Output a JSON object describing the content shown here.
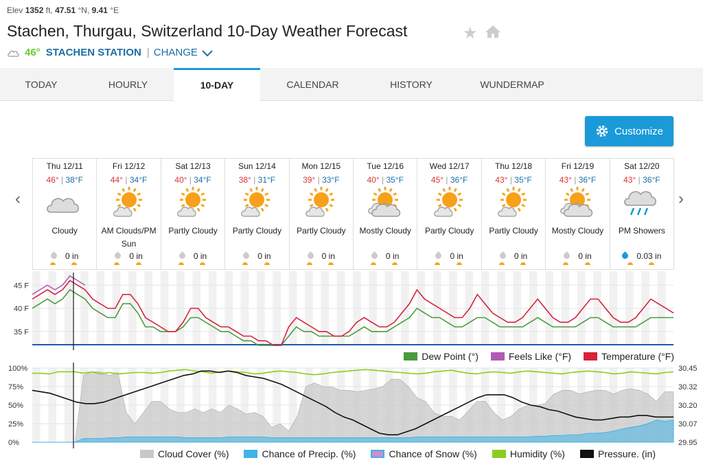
{
  "header": {
    "elev_prefix": "Elev",
    "elev_value": "1352",
    "elev_unit": "ft,",
    "lat": "47.51",
    "lat_unit": "°N,",
    "lon": "9.41",
    "lon_unit": "°E",
    "title": "Stachen, Thurgau, Switzerland 10-Day Weather Forecast",
    "station_temp": "46°",
    "station_name": "STACHEN STATION",
    "change_label": "CHANGE"
  },
  "tabs": [
    {
      "label": "TODAY"
    },
    {
      "label": "HOURLY"
    },
    {
      "label": "10-DAY"
    },
    {
      "label": "CALENDAR"
    },
    {
      "label": "HISTORY"
    },
    {
      "label": "WUNDERMAP"
    }
  ],
  "customize_label": "Customize",
  "days": [
    {
      "date": "Thu 12/11",
      "hi": "46°",
      "lo": "38°F",
      "cond": "Cloudy",
      "icon": "cloudy-icon",
      "precip": "0 in"
    },
    {
      "date": "Fri 12/12",
      "hi": "44°",
      "lo": "34°F",
      "cond": "AM Clouds/PM Sun",
      "icon": "partly-cloudy-icon",
      "precip": "0 in"
    },
    {
      "date": "Sat 12/13",
      "hi": "40°",
      "lo": "34°F",
      "cond": "Partly Cloudy",
      "icon": "partly-cloudy-icon",
      "precip": "0 in"
    },
    {
      "date": "Sun 12/14",
      "hi": "38°",
      "lo": "31°F",
      "cond": "Partly Cloudy",
      "icon": "partly-cloudy-icon",
      "precip": "0 in"
    },
    {
      "date": "Mon 12/15",
      "hi": "39°",
      "lo": "33°F",
      "cond": "Partly Cloudy",
      "icon": "partly-cloudy-icon",
      "precip": "0 in"
    },
    {
      "date": "Tue 12/16",
      "hi": "40°",
      "lo": "35°F",
      "cond": "Mostly Cloudy",
      "icon": "mostly-cloudy-icon",
      "precip": "0 in"
    },
    {
      "date": "Wed 12/17",
      "hi": "45°",
      "lo": "36°F",
      "cond": "Partly Cloudy",
      "icon": "partly-cloudy-icon",
      "precip": "0 in"
    },
    {
      "date": "Thu 12/18",
      "hi": "43°",
      "lo": "35°F",
      "cond": "Partly Cloudy",
      "icon": "partly-cloudy-icon",
      "precip": "0 in"
    },
    {
      "date": "Fri 12/19",
      "hi": "43°",
      "lo": "36°F",
      "cond": "Mostly Cloudy",
      "icon": "mostly-cloudy-icon",
      "precip": "0 in"
    },
    {
      "date": "Sat 12/20",
      "hi": "43°",
      "lo": "36°F",
      "cond": "PM Showers",
      "icon": "showers-icon",
      "precip": "0.03 in"
    }
  ],
  "chart_data": [
    {
      "type": "line",
      "yticks": [
        "45 F",
        "40 F",
        "35 F"
      ],
      "ylim": [
        32,
        48
      ],
      "legend": [
        "Dew Point (°)",
        "Feels Like (°F)",
        "Temperature (°F)"
      ],
      "colors": {
        "dew": "#4a9a3a",
        "feels": "#b05ab5",
        "temp": "#d6213a"
      },
      "series": [
        {
          "name": "Temperature (°F)",
          "values": [
            42,
            43,
            44,
            43,
            44,
            46,
            45,
            44,
            42,
            41,
            40,
            40,
            43,
            43,
            41,
            38,
            37,
            36,
            35,
            35,
            37,
            40,
            40,
            38,
            37,
            36,
            36,
            35,
            34,
            34,
            33,
            33,
            32,
            32,
            36,
            38,
            37,
            36,
            35,
            35,
            34,
            34,
            35,
            37,
            38,
            37,
            36,
            36,
            37,
            39,
            41,
            44,
            42,
            41,
            40,
            39,
            38,
            38,
            40,
            43,
            41,
            39,
            38,
            37,
            37,
            38,
            40,
            42,
            40,
            38,
            37,
            37,
            38,
            40,
            42,
            42,
            40,
            38,
            37,
            37,
            38,
            40,
            42,
            41,
            40,
            39
          ]
        },
        {
          "name": "Dew Point (°)",
          "values": [
            40,
            41,
            42,
            41,
            42,
            44,
            43,
            42,
            40,
            39,
            38,
            38,
            41,
            41,
            39,
            36,
            36,
            35,
            35,
            35,
            36,
            38,
            38,
            37,
            36,
            35,
            35,
            34,
            33,
            33,
            32,
            32,
            32,
            32,
            34,
            36,
            35,
            35,
            34,
            34,
            34,
            34,
            34,
            35,
            36,
            35,
            35,
            35,
            36,
            37,
            38,
            40,
            39,
            38,
            38,
            37,
            36,
            36,
            37,
            38,
            38,
            37,
            36,
            36,
            36,
            36,
            37,
            38,
            37,
            36,
            36,
            36,
            36,
            37,
            38,
            38,
            37,
            36,
            36,
            36,
            36,
            37,
            38,
            38,
            38,
            38
          ]
        }
      ]
    },
    {
      "type": "area",
      "yticks_left": [
        "100%",
        "75%",
        "50%",
        "25%",
        "0%"
      ],
      "yticks_right": [
        "30.45",
        "30.32",
        "30.20",
        "30.07",
        "29.95"
      ],
      "legend": [
        "Cloud Cover (%)",
        "Chance of Precip. (%)",
        "Chance of Snow (%)",
        "Humidity (%)",
        "Pressure. (in)"
      ],
      "colors": {
        "cloud": "#c8c8c8",
        "precip": "#42b3e5",
        "snow": "#c98ecf",
        "humidity": "#8ccc1e",
        "pressure": "#111111"
      },
      "series": [
        {
          "name": "Cloud Cover (%)",
          "values": [
            0,
            0,
            0,
            0,
            0,
            0,
            90,
            95,
            95,
            90,
            94,
            40,
            25,
            40,
            55,
            55,
            45,
            40,
            40,
            45,
            40,
            45,
            40,
            50,
            45,
            38,
            40,
            35,
            20,
            25,
            15,
            35,
            75,
            80,
            75,
            75,
            70,
            70,
            68,
            70,
            72,
            75,
            85,
            85,
            75,
            60,
            55,
            40,
            35,
            35,
            30,
            42,
            55,
            55,
            40,
            30,
            35,
            45,
            50,
            50,
            52,
            65,
            70,
            70,
            65,
            68,
            70,
            70,
            65,
            70,
            72,
            70,
            65,
            55,
            68,
            68
          ]
        },
        {
          "name": "Chance of Precip. (%)",
          "values": [
            0,
            0,
            0,
            0,
            0,
            0,
            5,
            5,
            5,
            6,
            6,
            7,
            7,
            7,
            7,
            7,
            7,
            7,
            6,
            6,
            6,
            6,
            6,
            7,
            7,
            7,
            7,
            7,
            6,
            6,
            6,
            6,
            6,
            6,
            6,
            6,
            6,
            6,
            6,
            6,
            6,
            6,
            6,
            6,
            6,
            7,
            7,
            7,
            7,
            7,
            7,
            7,
            7,
            7,
            7,
            7,
            7,
            7,
            7,
            8,
            8,
            9,
            9,
            10,
            10,
            12,
            12,
            13,
            15,
            18,
            20,
            22,
            25,
            30,
            28,
            30
          ]
        },
        {
          "name": "Humidity (%)",
          "values": [
            93,
            93,
            92,
            95,
            95,
            95,
            93,
            95,
            92,
            94,
            92,
            93,
            94,
            94,
            93,
            94,
            96,
            97,
            98,
            96,
            95,
            93,
            95,
            96,
            95,
            94,
            92,
            93,
            95,
            96,
            95,
            94,
            92,
            91,
            92,
            94,
            95,
            96,
            97,
            98,
            97,
            96,
            95,
            94,
            93,
            92,
            93,
            95,
            96,
            97,
            95,
            93,
            92,
            94,
            95,
            94,
            93,
            95,
            96,
            95,
            94,
            93,
            92,
            94,
            95,
            96,
            95,
            94,
            92,
            93,
            95,
            94,
            93,
            92,
            94,
            95
          ]
        },
        {
          "name": "Pressure. (in)",
          "values": [
            30.3,
            30.29,
            30.28,
            30.26,
            30.24,
            30.22,
            30.21,
            30.21,
            30.22,
            30.24,
            30.26,
            30.28,
            30.3,
            30.32,
            30.34,
            30.36,
            30.38,
            30.4,
            30.41,
            30.43,
            30.43,
            30.42,
            30.43,
            30.42,
            30.4,
            30.39,
            30.38,
            30.36,
            30.34,
            30.31,
            30.28,
            30.25,
            30.22,
            30.19,
            30.15,
            30.12,
            30.1,
            30.07,
            30.04,
            30.01,
            30.0,
            30.0,
            30.02,
            30.04,
            30.07,
            30.1,
            30.13,
            30.16,
            30.19,
            30.22,
            30.25,
            30.27,
            30.27,
            30.27,
            30.25,
            30.22,
            30.2,
            30.19,
            30.17,
            30.16,
            30.14,
            30.12,
            30.11,
            30.1,
            30.1,
            30.11,
            30.12,
            30.12,
            30.13,
            30.13,
            30.12,
            30.12,
            30.12
          ]
        }
      ]
    }
  ]
}
